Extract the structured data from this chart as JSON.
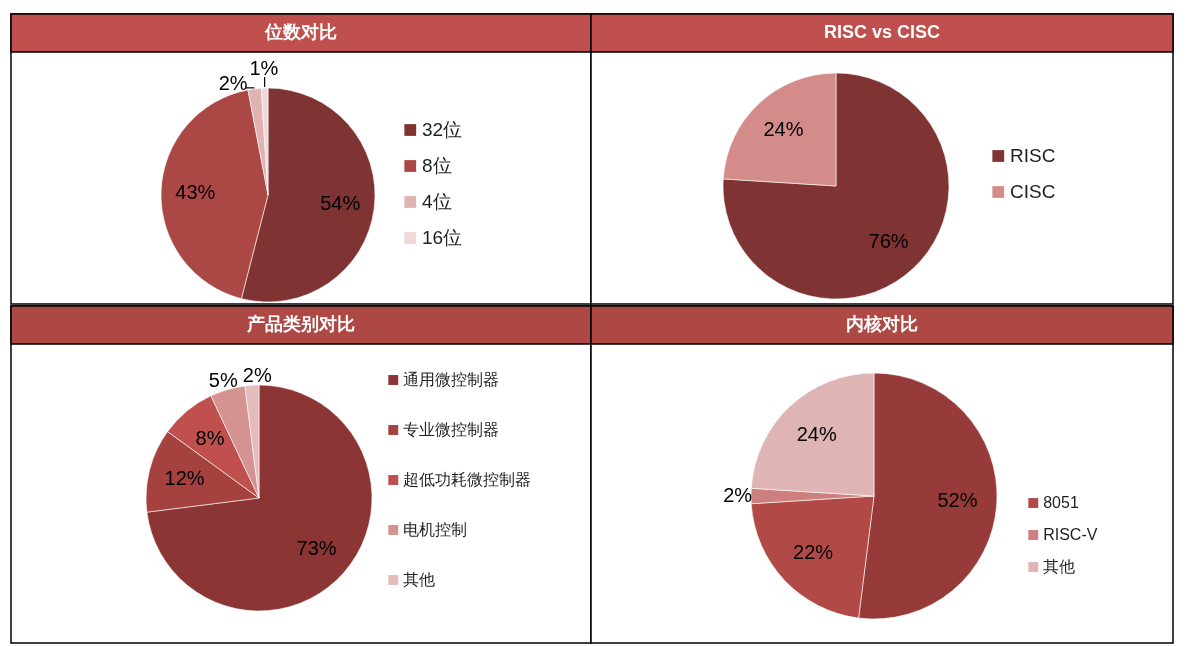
{
  "chart_data": [
    {
      "type": "pie",
      "title": "位数对比",
      "categories": [
        "32位",
        "8位",
        "4位",
        "16位"
      ],
      "values": [
        54,
        43,
        2,
        1
      ],
      "colors": [
        "#7f3333",
        "#ab4744",
        "#e0b3b2",
        "#f0d8d8"
      ],
      "value_labels": [
        "54%",
        "43%",
        "2%",
        "1%"
      ],
      "legend": "right"
    },
    {
      "type": "pie",
      "title": "RISC vs CISC",
      "categories": [
        "RISC",
        "CISC"
      ],
      "values": [
        76,
        24
      ],
      "colors": [
        "#7f3333",
        "#d38c8a"
      ],
      "value_labels": [
        "76%",
        "24%"
      ],
      "legend": "right"
    },
    {
      "type": "pie",
      "title": "产品类别对比",
      "categories": [
        "通用微控制器",
        "专业微控制器",
        "超低功耗微控制器",
        "电机控制",
        "其他"
      ],
      "values": [
        73,
        12,
        8,
        5,
        2
      ],
      "colors": [
        "#8b3534",
        "#a54240",
        "#c0504d",
        "#d49391",
        "#e3bcbb"
      ],
      "value_labels": [
        "73%",
        "12%",
        "8%",
        "5%",
        "2%"
      ],
      "legend": "right"
    },
    {
      "type": "pie",
      "title": "内核对比",
      "categories": [
        null,
        "8051",
        "RISC-V",
        "其他"
      ],
      "values": [
        52,
        22,
        2,
        24
      ],
      "colors": [
        "#963a3a",
        "#b14a47",
        "#cd7f7d",
        "#deb5b4"
      ],
      "value_labels": [
        "52%",
        "22%",
        "2%",
        "24%"
      ],
      "legend": "right"
    }
  ]
}
